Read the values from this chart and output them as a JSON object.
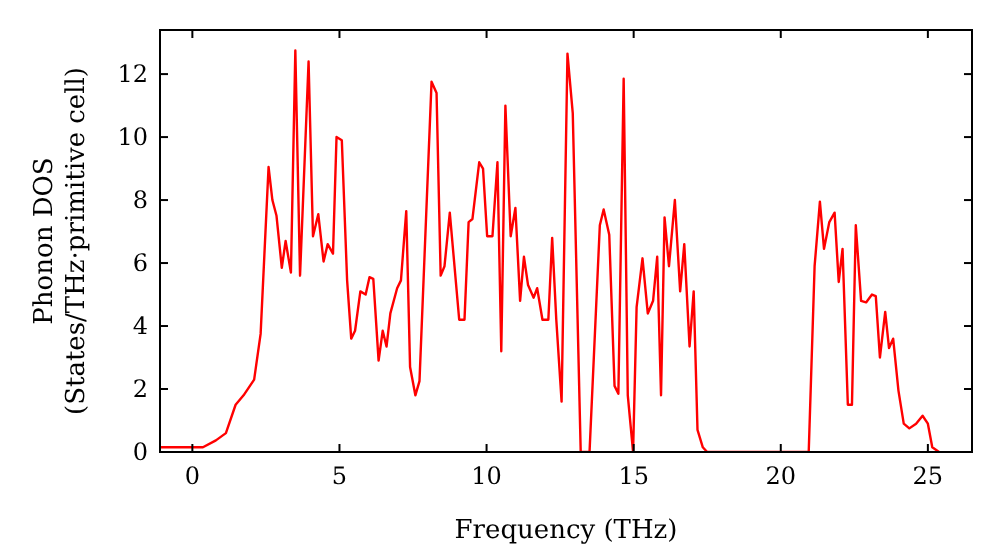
{
  "chart_data": {
    "type": "line",
    "xlabel": "Frequency (THz)",
    "ylabel": "Phonon DOS\n(States/THz·primitive cell)",
    "xlim": [
      -1.1,
      26.5
    ],
    "ylim": [
      0,
      13.4
    ],
    "xticks": [
      0,
      5,
      10,
      15,
      20,
      25
    ],
    "yticks": [
      0,
      2,
      4,
      6,
      8,
      10,
      12
    ],
    "grid": false,
    "marker": "none",
    "line_style": "solid",
    "series": [
      {
        "color": "#ff0000",
        "x": [
          -1.09,
          -0.53,
          0.36,
          0.8,
          1.14,
          1.47,
          1.74,
          2.1,
          2.32,
          2.59,
          2.72,
          2.86,
          3.04,
          3.17,
          3.35,
          3.5,
          3.66,
          3.95,
          4.1,
          4.28,
          4.46,
          4.6,
          4.78,
          4.9,
          5.08,
          5.26,
          5.4,
          5.53,
          5.71,
          5.89,
          6.02,
          6.15,
          6.33,
          6.47,
          6.6,
          6.73,
          6.96,
          7.09,
          7.27,
          7.4,
          7.58,
          7.72,
          8.13,
          8.3,
          8.44,
          8.57,
          8.75,
          9.07,
          9.25,
          9.39,
          9.52,
          9.75,
          9.88,
          10.02,
          10.2,
          10.37,
          10.5,
          10.64,
          10.82,
          10.98,
          11.14,
          11.27,
          11.41,
          11.6,
          11.72,
          11.9,
          12.1,
          12.23,
          12.37,
          12.55,
          12.75,
          12.93,
          13.2,
          13.5,
          13.85,
          13.98,
          14.17,
          14.35,
          14.48,
          14.66,
          14.8,
          14.98,
          15.1,
          15.3,
          15.48,
          15.66,
          15.8,
          15.93,
          16.05,
          16.2,
          16.4,
          16.58,
          16.72,
          16.9,
          17.04,
          17.17,
          17.35,
          17.5,
          20.95,
          21.15,
          21.33,
          21.47,
          21.65,
          21.83,
          21.97,
          22.1,
          22.28,
          22.42,
          22.55,
          22.73,
          22.9,
          23.1,
          23.23,
          23.37,
          23.55,
          23.68,
          23.82,
          24.0,
          24.18,
          24.37,
          24.6,
          24.82,
          25.0,
          25.15,
          25.38
        ],
        "values": [
          0.15,
          0.15,
          0.15,
          0.37,
          0.6,
          1.5,
          1.8,
          2.3,
          3.75,
          9.05,
          8.0,
          7.5,
          5.85,
          6.7,
          5.7,
          12.75,
          5.6,
          12.4,
          6.85,
          7.55,
          6.05,
          6.6,
          6.3,
          10.0,
          9.9,
          5.45,
          3.6,
          3.85,
          5.1,
          5.0,
          5.55,
          5.5,
          2.9,
          3.85,
          3.35,
          4.4,
          5.2,
          5.45,
          7.65,
          2.7,
          1.8,
          2.25,
          11.76,
          11.4,
          5.6,
          5.9,
          7.6,
          4.2,
          4.2,
          7.3,
          7.4,
          9.2,
          9.0,
          6.85,
          6.85,
          9.2,
          3.2,
          11.0,
          6.85,
          7.75,
          4.8,
          6.2,
          5.3,
          4.9,
          5.2,
          4.2,
          4.2,
          6.8,
          4.2,
          1.6,
          12.65,
          10.75,
          0,
          0,
          7.2,
          7.7,
          6.9,
          2.1,
          1.85,
          11.85,
          1.8,
          0,
          4.6,
          6.15,
          4.4,
          4.8,
          6.2,
          1.8,
          7.45,
          5.9,
          8.0,
          5.1,
          6.6,
          3.35,
          5.1,
          0.7,
          0.15,
          0,
          0,
          5.9,
          7.95,
          6.45,
          7.3,
          7.6,
          5.4,
          6.45,
          1.5,
          1.5,
          7.2,
          4.8,
          4.75,
          5.0,
          4.95,
          3.0,
          4.45,
          3.3,
          3.6,
          1.95,
          0.9,
          0.75,
          0.9,
          1.15,
          0.9,
          0.15,
          0
        ]
      }
    ]
  }
}
